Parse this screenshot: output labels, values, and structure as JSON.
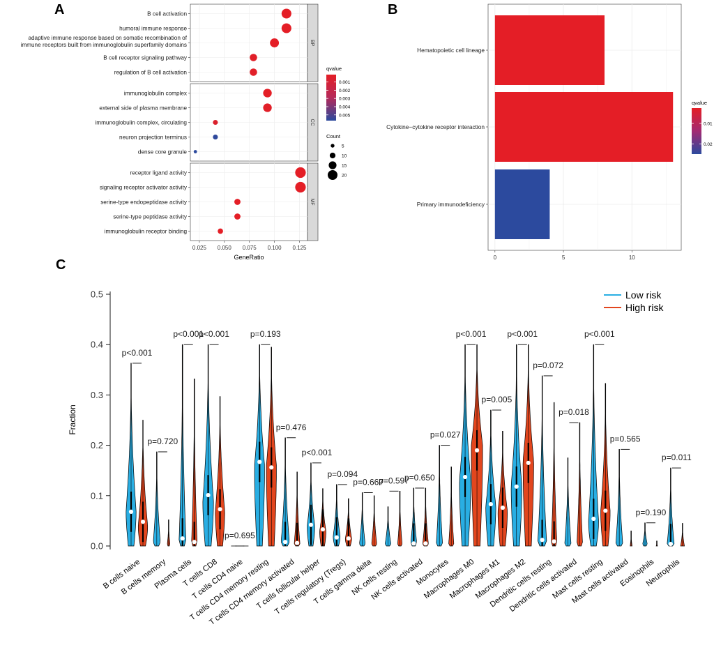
{
  "colors": {
    "red": "#e41e26",
    "blue": "#2c4a9e",
    "purple": "#7a3d8f",
    "low_risk": "#29aee3",
    "high_risk": "#e2461e",
    "facet_strip": "#d9d9d9",
    "grid": "#ebebeb"
  },
  "chart_data": [
    {
      "panel": "A",
      "type": "scatter",
      "subtype": "GO enrichment dot plot",
      "panel_label": "A",
      "xlabel": "GeneRatio",
      "xlim": [
        0.016,
        0.133
      ],
      "xticks": [
        0.025,
        0.05,
        0.075,
        0.1,
        0.125
      ],
      "xtick_labels": [
        "0.025",
        "0.050",
        "0.075",
        "0.100",
        "0.125"
      ],
      "facets": [
        {
          "name": "BP",
          "terms": [
            {
              "label": "B cell activation",
              "gene_ratio": 0.112,
              "count": 20,
              "qvalue": 0.0001
            },
            {
              "label": "humoral immune response",
              "gene_ratio": 0.112,
              "count": 20,
              "qvalue": 0.0001
            },
            {
              "label": "adaptive immune response based on somatic recombination of",
              "label2": "immune receptors built from immunoglobulin superfamily domains",
              "gene_ratio": 0.1,
              "count": 18,
              "qvalue": 0.0001
            },
            {
              "label": "B cell receptor signaling pathway",
              "gene_ratio": 0.079,
              "count": 14,
              "qvalue": 0.0002
            },
            {
              "label": "regulation of B cell activation",
              "gene_ratio": 0.079,
              "count": 14,
              "qvalue": 0.0002
            }
          ]
        },
        {
          "name": "CC",
          "terms": [
            {
              "label": "immunoglobulin complex",
              "gene_ratio": 0.093,
              "count": 17,
              "qvalue": 0.0001
            },
            {
              "label": "external side of plasma membrane",
              "gene_ratio": 0.093,
              "count": 17,
              "qvalue": 0.0002
            },
            {
              "label": "immunoglobulin complex, circulating",
              "gene_ratio": 0.041,
              "count": 8,
              "qvalue": 0.0004
            },
            {
              "label": "neuron projection terminus",
              "gene_ratio": 0.041,
              "count": 8,
              "qvalue": 0.0056
            },
            {
              "label": "dense core granule",
              "gene_ratio": 0.021,
              "count": 4,
              "qvalue": 0.0057
            }
          ]
        },
        {
          "name": "MF",
          "terms": [
            {
              "label": "receptor ligand activity",
              "gene_ratio": 0.126,
              "count": 22,
              "qvalue": 0.0001
            },
            {
              "label": "signaling receptor activator activity",
              "gene_ratio": 0.126,
              "count": 22,
              "qvalue": 0.0001
            },
            {
              "label": "serine-type endopeptidase activity",
              "gene_ratio": 0.063,
              "count": 11,
              "qvalue": 0.0001
            },
            {
              "label": "serine-type peptidase activity",
              "gene_ratio": 0.063,
              "count": 11,
              "qvalue": 0.0001
            },
            {
              "label": "immunoglobulin receptor binding",
              "gene_ratio": 0.046,
              "count": 9,
              "qvalue": 0.0001
            }
          ]
        }
      ],
      "legend_qvalue": {
        "title": "qvalue",
        "range": [
          0.0001,
          0.0057
        ],
        "ticks": [
          0.001,
          0.002,
          0.003,
          0.004,
          0.005
        ],
        "tick_labels": [
          "0.001",
          "0.002",
          "0.003",
          "0.004",
          "0.005"
        ]
      },
      "legend_count": {
        "title": "Count",
        "values": [
          5,
          10,
          15,
          20
        ],
        "labels": [
          "5",
          "10",
          "15",
          "20"
        ]
      }
    },
    {
      "panel": "B",
      "type": "bar",
      "orientation": "horizontal",
      "panel_label": "B",
      "categories": [
        "Hematopoietic cell lineage",
        "Cytokine−cytokine receptor interaction",
        "Primary immunodeficiency"
      ],
      "values": [
        8,
        13,
        4
      ],
      "qvalues": [
        0.0025,
        0.0025,
        0.025
      ],
      "xlim": [
        -0.5,
        13.6
      ],
      "xticks": [
        0,
        5,
        10
      ],
      "xtick_labels": [
        "0",
        "5",
        "10"
      ],
      "legend": {
        "title": "qvalue",
        "range": [
          0.0025,
          0.025
        ],
        "ticks": [
          0.01,
          0.02
        ],
        "tick_labels": [
          "0.01",
          "0.02"
        ]
      }
    },
    {
      "panel": "C",
      "type": "violin",
      "panel_label": "C",
      "ylabel": "Fraction",
      "ylim": [
        0,
        0.5
      ],
      "yticks": [
        0,
        0.1,
        0.2,
        0.3,
        0.4,
        0.5
      ],
      "ytick_labels": [
        "0.0",
        "0.1",
        "0.2",
        "0.3",
        "0.4",
        "0.5"
      ],
      "legend": [
        "Low risk",
        "High risk"
      ],
      "categories": [
        "B cells naive",
        "B cells memory",
        "Plasma cells",
        "T cells CD8",
        "T cells CD4 naive",
        "T cells CD4 memory resting",
        "T cells CD4 memory activated",
        "T cells follicular helper",
        "T cells regulatory (Tregs)",
        "T cells gamma delta",
        "NK cells resting",
        "NK cells activated",
        "Monocytes",
        "Macrophages M0",
        "Macrophages M1",
        "Macrophages M2",
        "Dendritic cells resting",
        "Dendritic cells activated",
        "Mast cells resting",
        "Mast cells activated",
        "Eosinophils",
        "Neutrophils"
      ],
      "p_values": [
        "p<0.001",
        "p=0.720",
        "p<0.001",
        "p<0.001",
        "p=0.695",
        "p=0.193",
        "p=0.476",
        "p<0.001",
        "p=0.094",
        "p=0.667",
        "p=0.597",
        "p=0.650",
        "p=0.027",
        "p<0.001",
        "p=0.005",
        "p<0.001",
        "p=0.072",
        "p=0.018",
        "p<0.001",
        "p=0.565",
        "p=0.190",
        "p=0.011"
      ],
      "series": [
        {
          "name": "Low risk",
          "median": [
            0.068,
            0.001,
            0.015,
            0.101,
            0.0,
            0.167,
            0.008,
            0.042,
            0.017,
            0.002,
            0.002,
            0.005,
            0.001,
            0.137,
            0.083,
            0.118,
            0.012,
            0.001,
            0.054,
            0.001,
            0.0,
            0.004
          ],
          "max": [
            0.363,
            0.187,
            0.4,
            0.4,
            0.0,
            0.4,
            0.215,
            0.165,
            0.122,
            0.106,
            0.078,
            0.115,
            0.2,
            0.4,
            0.27,
            0.4,
            0.338,
            0.175,
            0.4,
            0.192,
            0.046,
            0.155
          ],
          "peak": [
            0.07,
            0.01,
            0.01,
            0.09,
            0.0,
            0.16,
            0.01,
            0.04,
            0.02,
            0.005,
            0.005,
            0.01,
            0.005,
            0.13,
            0.08,
            0.12,
            0.01,
            0.005,
            0.05,
            0.005,
            0.005,
            0.005
          ],
          "width": [
            0.8,
            0.55,
            0.55,
            0.85,
            0.0,
            0.8,
            0.65,
            0.6,
            0.55,
            0.45,
            0.45,
            0.45,
            0.5,
            0.9,
            0.8,
            0.85,
            0.7,
            0.5,
            0.8,
            0.55,
            0.35,
            0.55
          ]
        },
        {
          "name": "High risk",
          "median": [
            0.048,
            0.0,
            0.008,
            0.073,
            0.0,
            0.156,
            0.006,
            0.033,
            0.015,
            0.002,
            0.001,
            0.005,
            0.001,
            0.19,
            0.076,
            0.165,
            0.009,
            0.002,
            0.07,
            0.0,
            0.0,
            0.001
          ],
          "max": [
            0.25,
            0.052,
            0.332,
            0.297,
            0.0,
            0.395,
            0.147,
            0.114,
            0.094,
            0.1,
            0.109,
            0.115,
            0.157,
            0.4,
            0.228,
            0.4,
            0.285,
            0.245,
            0.323,
            0.03,
            0.01,
            0.045
          ],
          "peak": [
            0.04,
            0.005,
            0.005,
            0.07,
            0.0,
            0.16,
            0.005,
            0.03,
            0.015,
            0.005,
            0.005,
            0.005,
            0.005,
            0.2,
            0.07,
            0.17,
            0.005,
            0.005,
            0.07,
            0.0,
            0.0,
            0.0
          ],
          "width": [
            0.75,
            0.2,
            0.45,
            0.75,
            0.0,
            0.8,
            0.45,
            0.5,
            0.5,
            0.4,
            0.35,
            0.45,
            0.4,
            0.9,
            0.75,
            0.85,
            0.45,
            0.45,
            0.75,
            0.15,
            0.1,
            0.3
          ]
        }
      ]
    }
  ]
}
